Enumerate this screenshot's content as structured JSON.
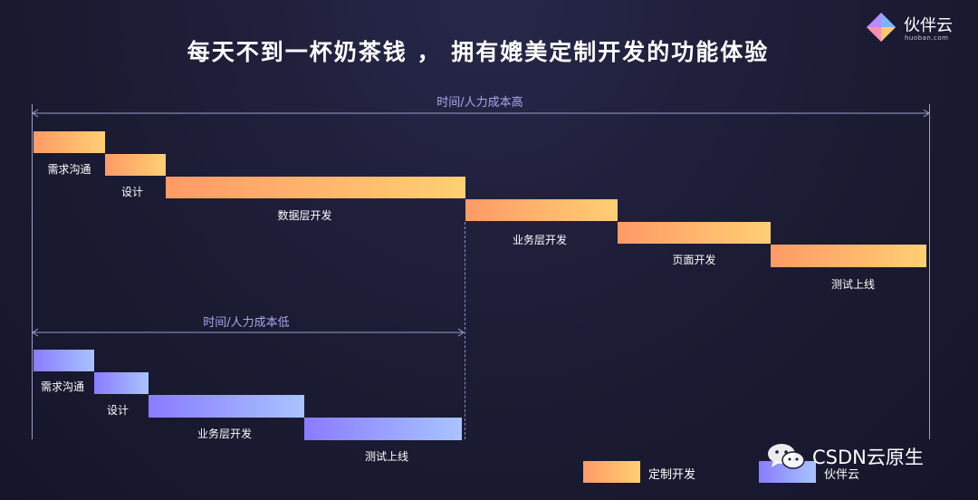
{
  "title": "每天不到一杯奶茶钱 ， 拥有媲美定制开发的功能体验",
  "logo": {
    "name": "伙伴云",
    "sub": "huoban.com",
    "icon": "logo-icon"
  },
  "top_range": {
    "label": "时间/人力成本高"
  },
  "bottom_range": {
    "label": "时间/人力成本低"
  },
  "custom_steps": [
    {
      "label": "需求沟通"
    },
    {
      "label": "设计"
    },
    {
      "label": "数据层开发"
    },
    {
      "label": "业务层开发"
    },
    {
      "label": "页面开发"
    },
    {
      "label": "测试上线"
    }
  ],
  "huoban_steps": [
    {
      "label": "需求沟通"
    },
    {
      "label": "设计"
    },
    {
      "label": "业务层开发"
    },
    {
      "label": "测试上线"
    }
  ],
  "legend": [
    {
      "label": "定制开发",
      "color": "#ff9a66"
    },
    {
      "label": "伙伴云",
      "color": "#8a7bff"
    }
  ],
  "watermark": {
    "text": "CSDN云原生",
    "icon": "wechat-icon"
  }
}
